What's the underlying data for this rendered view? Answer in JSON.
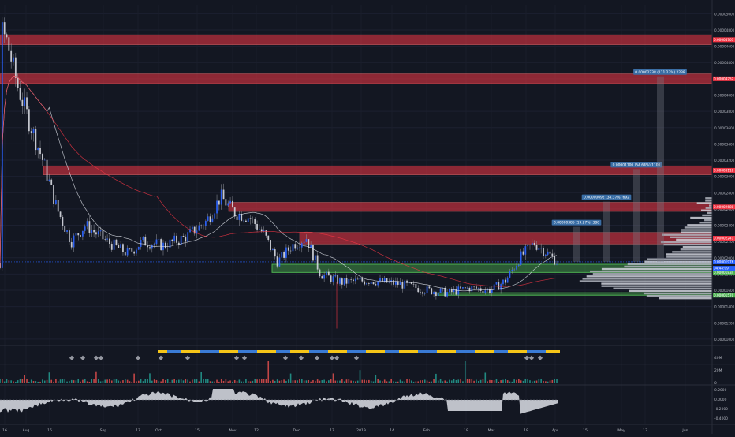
{
  "chart_data": {
    "type": "candlestick",
    "y_labels": [
      "0.00005000",
      "0.00004800",
      "0.00004600",
      "0.00004400",
      "0.00004200",
      "0.00004000",
      "0.00003800",
      "0.00003600",
      "0.00003400",
      "0.00003200",
      "0.00003000",
      "0.00002800",
      "0.00002600",
      "0.00002400",
      "0.00002200",
      "0.00002000",
      "0.00001800",
      "0.00001600",
      "0.00001400",
      "0.00001200",
      "0.00001000"
    ],
    "ylim": [
      9.8e-06,
      5.11e-05
    ],
    "x_labels": [
      "16",
      "Aug",
      "16",
      "Sep",
      "17",
      "Oct",
      "15",
      "Nov",
      "12",
      "Dec",
      "17",
      "2019",
      "14",
      "Feb",
      "18",
      "Mar",
      "18",
      "Apr",
      "15",
      "May",
      "13",
      "Jun"
    ],
    "resistance_zones": [
      {
        "low": 4.62e-05,
        "high": 4.74e-05,
        "label": "0.00004707"
      },
      {
        "low": 4.14e-05,
        "high": 4.26e-05,
        "label": "0.00004252"
      },
      {
        "low": 3.02e-05,
        "high": 3.13e-05,
        "label": "0.00003118"
      },
      {
        "low": 2.57e-05,
        "high": 2.68e-05,
        "label": "0.00002680"
      },
      {
        "low": 2.17e-05,
        "high": 2.31e-05,
        "label": "0.00002241"
      }
    ],
    "support_zones": [
      {
        "low": 1.82e-05,
        "high": 1.92e-05,
        "label": "0.00001834"
      },
      {
        "low": 1.54e-05,
        "high": 1.57e-05,
        "label": "0.00001570"
      }
    ],
    "price_tags": [
      {
        "price": 1.94e-05,
        "label": "0.00001976",
        "color": "#2962ff"
      },
      {
        "price": 1.91e-05,
        "label": "04:44:09",
        "color": "#2962ff"
      }
    ],
    "target_labels": [
      "0.00000386 (19.27%) 386",
      "0.00000692 (34.37%) 692",
      "0.00001100 (54.64%) 1100",
      "0.00002238 (111.23%) 2238"
    ],
    "target_prices": [
      2.38e-05,
      2.69e-05,
      3.09e-05,
      4.23e-05
    ],
    "price_path": [
      [
        4.6e-05,
        4.82e-05
      ],
      [
        0.01,
        4.65e-05
      ],
      [
        0.025,
        4.1e-05
      ],
      [
        0.04,
        3.7e-05
      ],
      [
        0.06,
        3.2e-05
      ],
      [
        0.08,
        2.6e-05
      ],
      [
        0.1,
        2.2e-05
      ],
      [
        0.12,
        2.4e-05
      ],
      [
        0.15,
        2.2e-05
      ],
      [
        0.18,
        2.05e-05
      ],
      [
        0.2,
        2.2e-05
      ],
      [
        0.23,
        2.15e-05
      ],
      [
        0.26,
        2.25e-05
      ],
      [
        0.29,
        2.45e-05
      ],
      [
        0.31,
        2.75e-05
      ],
      [
        0.33,
        2.55e-05
      ],
      [
        0.35,
        2.5e-05
      ],
      [
        0.37,
        2.3e-05
      ],
      [
        0.39,
        1.95e-05
      ],
      [
        0.41,
        2.15e-05
      ],
      [
        0.43,
        2.25e-05
      ],
      [
        0.45,
        1.8e-05
      ],
      [
        0.48,
        1.7e-05
      ],
      [
        0.52,
        1.72e-05
      ],
      [
        0.56,
        1.68e-05
      ],
      [
        0.6,
        1.6e-05
      ],
      [
        0.63,
        1.57e-05
      ],
      [
        0.66,
        1.63e-05
      ],
      [
        0.69,
        1.6e-05
      ],
      [
        0.71,
        1.72e-05
      ],
      [
        0.73,
        2e-05
      ],
      [
        0.75,
        2.18e-05
      ],
      [
        0.77,
        2.05e-05
      ],
      [
        0.785,
        1.93e-05
      ]
    ],
    "volume_labels": [
      "40M",
      "20M",
      "0"
    ],
    "oscillator_labels": [
      "0.2000",
      "0.0000",
      "-0.2000",
      "-0.4000"
    ]
  }
}
